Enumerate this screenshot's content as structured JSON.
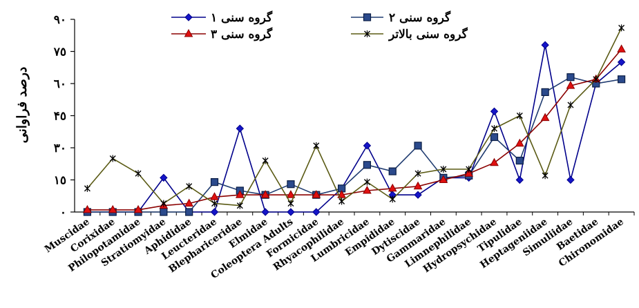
{
  "chart_data": {
    "type": "line",
    "ylabel": "درصد فراوانی",
    "ylim": [
      0,
      90
    ],
    "yticks": [
      0,
      15,
      30,
      45,
      60,
      75,
      90
    ],
    "ytick_labels": [
      "٠",
      "١٥",
      "٣٠",
      "۴٥",
      "٦٠",
      "٧٥",
      "٩٠"
    ],
    "categories": [
      "Muscidae",
      "Corixidae",
      "Philopotamidae",
      "Stratiomyidae",
      "Aphididae",
      "Leucteridae",
      "Blephariceridae",
      "Elmidae",
      "Coleoptera Adults",
      "Formicidae",
      "Rhyacophilidae",
      "Lumbricidae",
      "Empididae",
      "Dytiscidae",
      "Gammaridae",
      "Limnephilidae",
      "Hydropsychidae",
      "Tipulidae",
      "Heptageniidae",
      "Simuliidae",
      "Baetidae",
      "Chironomidae"
    ],
    "grid": false,
    "legend": "top",
    "series": [
      {
        "name": "گروه سنی ١",
        "color": "#00008b",
        "marker": "diamond",
        "values": [
          0,
          0,
          0,
          16,
          0,
          0,
          39,
          0,
          0,
          0,
          11,
          31,
          8,
          8,
          16,
          16,
          47,
          15,
          78,
          15,
          60,
          70
        ]
      },
      {
        "name": "گروه سنی ٢",
        "color": "#1f3b70",
        "marker": "square",
        "values": [
          0,
          0,
          0,
          0,
          0,
          14,
          10,
          8,
          13,
          8,
          11,
          22,
          19,
          31,
          16,
          17,
          35,
          24,
          56,
          63,
          60,
          62
        ]
      },
      {
        "name": "گروه سنی ٣",
        "color": "#8b0000",
        "marker": "triangle",
        "values": [
          1,
          1,
          1,
          3,
          4,
          7,
          8,
          8,
          8,
          8,
          8,
          10,
          11,
          12,
          15,
          18,
          23,
          32,
          44,
          59,
          62,
          76
        ]
      },
      {
        "name": "گروه سنی بالاتر",
        "color": "#5a5a14",
        "marker": "x",
        "values": [
          11,
          25,
          18,
          4,
          12,
          4,
          3,
          24,
          4,
          31,
          5,
          14,
          6,
          18,
          20,
          20,
          39,
          45,
          17,
          50,
          62,
          86
        ]
      }
    ]
  }
}
